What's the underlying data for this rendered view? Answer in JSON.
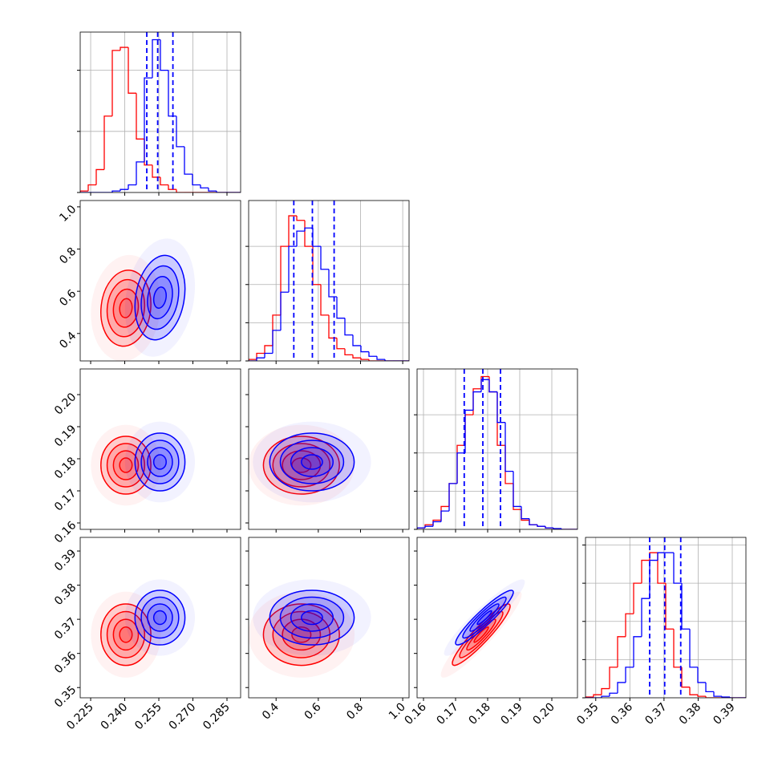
{
  "chart_data": {
    "type": "corner",
    "contour_levels": [
      0.5,
      1,
      1.5,
      2
    ],
    "quantile_series": 1,
    "params": [
      {
        "range": [
          0.2204,
          0.291
        ],
        "ticks": [
          {
            "value": 0.225,
            "label": "0.225"
          },
          {
            "value": 0.24,
            "label": "0.240"
          },
          {
            "value": 0.255,
            "label": "0.255"
          },
          {
            "value": 0.27,
            "label": "0.270"
          },
          {
            "value": 0.285,
            "label": "0.285"
          }
        ],
        "bins": [
          0.2204,
          0.22393,
          0.22746,
          0.23099,
          0.23452,
          0.23805,
          0.24158,
          0.24511,
          0.24864,
          0.25217,
          0.2557,
          0.25923,
          0.26276,
          0.26629,
          0.26982,
          0.27335,
          0.27688,
          0.28041,
          0.28394,
          0.28747,
          0.291
        ],
        "hist_ylim": [
          0,
          1.05
        ],
        "hist_yticks": [
          0,
          0.4,
          0.8
        ],
        "quantiles": [
          0.2497,
          0.2545,
          0.2612
        ]
      },
      {
        "range": [
          0.27,
          1.03
        ],
        "ticks": [
          0.4,
          0.6,
          0.8,
          {
            "value": 1.0,
            "label": "1.0"
          }
        ],
        "bins": [
          0.27,
          0.308,
          0.346,
          0.384,
          0.422,
          0.46,
          0.498,
          0.536,
          0.574,
          0.612,
          0.65,
          0.688,
          0.726,
          0.764,
          0.802,
          0.84,
          0.878,
          0.916,
          0.954,
          0.992,
          1.03
        ],
        "hist_ylim": [
          0,
          1.05
        ],
        "hist_yticks": [
          0,
          0.25,
          0.5,
          0.75
        ],
        "quantiles": [
          0.484,
          0.572,
          0.675
        ]
      },
      {
        "range": [
          0.158,
          0.208
        ],
        "ticks": [
          0.16,
          0.17,
          0.18,
          0.19,
          {
            "value": 0.2,
            "label": "0.20"
          }
        ],
        "bins": [
          0.158,
          0.1605,
          0.163,
          0.1655,
          0.168,
          0.1705,
          0.173,
          0.1755,
          0.178,
          0.1805,
          0.183,
          0.1855,
          0.188,
          0.1905,
          0.193,
          0.1955,
          0.198,
          0.2005,
          0.203,
          0.2055,
          0.208
        ],
        "hist_ylim": [
          0,
          1.05
        ],
        "hist_yticks": [
          0,
          0.25,
          0.5,
          0.75
        ],
        "quantiles": [
          0.1727,
          0.1785,
          0.184
        ]
      },
      {
        "range": [
          0.347,
          0.394
        ],
        "ticks": [
          0.35,
          0.36,
          0.37,
          0.38,
          0.39
        ],
        "bins": [
          0.347,
          0.34935,
          0.3517,
          0.35405,
          0.3564,
          0.35875,
          0.3611,
          0.36345,
          0.3658,
          0.36815,
          0.3705,
          0.37285,
          0.3752,
          0.37755,
          0.3799,
          0.38225,
          0.3846,
          0.38695,
          0.3893,
          0.39165,
          0.394
        ],
        "hist_ylim": [
          0,
          1.05
        ],
        "hist_yticks": [
          0,
          0.25,
          0.5,
          0.75,
          1.0
        ],
        "quantiles": [
          0.3658,
          0.3702,
          0.3749
        ]
      }
    ],
    "series": [
      {
        "color": "#ff0000",
        "mean": [
          0.2405,
          0.52,
          0.178,
          0.3655
        ],
        "sd": [
          0.0055,
          0.09,
          0.0045,
          0.0045
        ],
        "corr": [
          [
            1,
            0.1,
            0,
            0
          ],
          [
            0.1,
            1,
            0,
            0
          ],
          [
            0,
            0,
            1,
            0.93
          ],
          [
            0,
            0,
            0.93,
            1
          ]
        ],
        "hist": [
          [
            0.01,
            0.05,
            0.15,
            0.5,
            0.93,
            0.95,
            0.65,
            0.35,
            0.18,
            0.1,
            0.05,
            0.02,
            0,
            0,
            0,
            0,
            0,
            0,
            0,
            0
          ],
          [
            0.01,
            0.05,
            0.1,
            0.3,
            0.75,
            0.95,
            0.92,
            0.75,
            0.5,
            0.3,
            0.15,
            0.08,
            0.04,
            0.02,
            0.01,
            0,
            0,
            0,
            0,
            0
          ],
          [
            0.01,
            0.03,
            0.06,
            0.15,
            0.3,
            0.55,
            0.75,
            0.92,
            1.0,
            0.9,
            0.55,
            0.3,
            0.13,
            0.06,
            0.03,
            0.02,
            0.01,
            0,
            0,
            0
          ],
          [
            0.005,
            0.02,
            0.06,
            0.2,
            0.4,
            0.55,
            0.75,
            0.9,
            0.95,
            0.75,
            0.45,
            0.2,
            0.07,
            0.02,
            0.01,
            0,
            0,
            0,
            0,
            0
          ]
        ]
      },
      {
        "color": "#0000ff",
        "mean": [
          0.2555,
          0.57,
          0.179,
          0.3705
        ],
        "sd": [
          0.0055,
          0.1,
          0.0045,
          0.004
        ],
        "corr": [
          [
            1,
            0.2,
            0,
            0
          ],
          [
            0.2,
            1,
            0,
            0
          ],
          [
            0,
            0,
            1,
            0.93
          ],
          [
            0,
            0,
            0.93,
            1
          ]
        ],
        "hist": [
          [
            0,
            0,
            0,
            0,
            0.01,
            0.02,
            0.05,
            0.2,
            0.75,
            1.0,
            0.8,
            0.5,
            0.3,
            0.12,
            0.05,
            0.03,
            0.01,
            0,
            0,
            0
          ],
          [
            0,
            0.02,
            0.05,
            0.2,
            0.45,
            0.75,
            0.85,
            0.87,
            0.75,
            0.6,
            0.42,
            0.28,
            0.17,
            0.1,
            0.06,
            0.03,
            0.01,
            0,
            0,
            0
          ],
          [
            0.01,
            0.02,
            0.05,
            0.12,
            0.3,
            0.5,
            0.78,
            0.9,
            0.98,
            0.9,
            0.7,
            0.38,
            0.15,
            0.07,
            0.03,
            0.02,
            0.01,
            0.005,
            0,
            0
          ],
          [
            0,
            0,
            0.01,
            0.03,
            0.1,
            0.2,
            0.4,
            0.65,
            0.9,
            0.95,
            0.95,
            0.75,
            0.45,
            0.2,
            0.1,
            0.04,
            0.01,
            0.005,
            0,
            0
          ]
        ]
      }
    ]
  }
}
